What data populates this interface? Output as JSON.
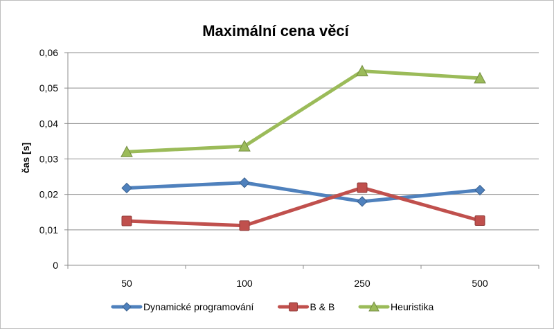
{
  "chart_data": {
    "type": "line",
    "title": "Maximální cena věcí",
    "xlabel": "",
    "ylabel": "čas [s]",
    "categories": [
      "50",
      "100",
      "250",
      "500"
    ],
    "ylim": [
      0,
      0.06
    ],
    "yticks": [
      0,
      0.01,
      0.02,
      0.03,
      0.04,
      0.05,
      0.06
    ],
    "ytick_labels": [
      "0",
      "0,01",
      "0,02",
      "0,03",
      "0,04",
      "0,05",
      "0,06"
    ],
    "grid": true,
    "legend": "bottom",
    "series": [
      {
        "name": "Dynamické programování",
        "values": [
          0.0218,
          0.0233,
          0.018,
          0.0212
        ],
        "color": "#4f81bd",
        "marker": "diamond"
      },
      {
        "name": "B & B",
        "values": [
          0.0125,
          0.0112,
          0.0219,
          0.0126
        ],
        "color": "#c0504d",
        "marker": "square"
      },
      {
        "name": "Heuristika",
        "values": [
          0.032,
          0.0336,
          0.0548,
          0.0528
        ],
        "color": "#9bbb59",
        "marker": "triangle"
      }
    ]
  }
}
